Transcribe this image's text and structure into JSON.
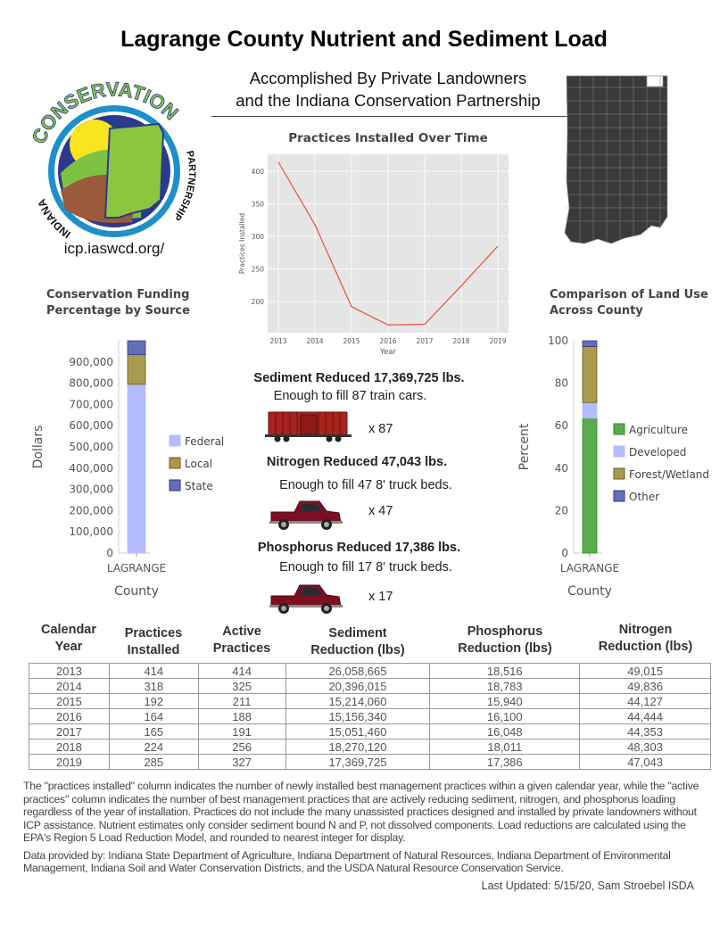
{
  "title": "Lagrange County Nutrient and Sediment Load",
  "subtitle": [
    "Accomplished By Private Landowners",
    "and the Indiana Conservation Partnership"
  ],
  "logo": {
    "text_top": "CONSERVATION",
    "text_left": "INDIANA",
    "text_right": "PARTNERSHIP",
    "url": "icp.iaswcd.org/"
  },
  "colors": {
    "line": "#e8533a",
    "federal": "#b3bcff",
    "local": "#a89a50",
    "state": "#6470b4",
    "agriculture": "#5aac4e",
    "developed": "#b3bcff",
    "forest": "#a89a50",
    "other": "#6470b4",
    "map": "#3a3a3a"
  },
  "chart_data": [
    {
      "type": "line",
      "title": "Practices Installed Over Time",
      "xlabel": "Year",
      "ylabel": "Practices Installed",
      "x": [
        2013,
        2014,
        2015,
        2016,
        2017,
        2018,
        2019
      ],
      "values": [
        414,
        318,
        192,
        164,
        165,
        224,
        285
      ],
      "yticks": [
        200,
        250,
        300,
        350,
        400
      ],
      "ylim": [
        152,
        426
      ],
      "grid": true
    },
    {
      "type": "bar",
      "stacked": true,
      "title": "Conservation Funding Percentage by Source",
      "xlabel": "County",
      "ylabel": "Dollars",
      "categories": [
        "LAGRANGE"
      ],
      "series": [
        {
          "name": "Federal",
          "values": [
            795000
          ]
        },
        {
          "name": "Local",
          "values": [
            140000
          ]
        },
        {
          "name": "State",
          "values": [
            65000
          ]
        }
      ],
      "yticks": [
        "0",
        "100,000",
        "200,000",
        "300,000",
        "400,000",
        "500,000",
        "600,000",
        "700,000",
        "800,000",
        "900,000"
      ],
      "ylim": [
        0,
        1000000
      ],
      "legend": "right"
    },
    {
      "type": "bar",
      "stacked": true,
      "title": "Comparison of Land Use Across County",
      "xlabel": "County",
      "ylabel": "Percent",
      "categories": [
        "LAGRANGE"
      ],
      "series": [
        {
          "name": "Agriculture",
          "values": [
            63.6
          ]
        },
        {
          "name": "Developed",
          "values": [
            7.3
          ]
        },
        {
          "name": "Forest/Wetland",
          "values": [
            26.4
          ]
        },
        {
          "name": "Other",
          "values": [
            2.7
          ]
        }
      ],
      "yticks": [
        "0",
        "20",
        "40",
        "60",
        "80",
        "100"
      ],
      "ylim": [
        0,
        100
      ],
      "legend": "right"
    }
  ],
  "loads": [
    {
      "headline": "Sediment Reduced 17,369,725 lbs.",
      "equiv": "Enough to fill 87 train cars.",
      "count": "x 87",
      "icon": "train-car-icon"
    },
    {
      "headline": "Nitrogen Reduced 47,043  lbs.",
      "equiv": "Enough to fill 47 8' truck beds.",
      "count": "x 47",
      "icon": "pickup-truck-icon"
    },
    {
      "headline": "Phosphorus Reduced 17,386  lbs.",
      "equiv": "Enough to fill 17  8' truck beds.",
      "count": "x 17",
      "icon": "pickup-truck-icon"
    }
  ],
  "table": {
    "headers": [
      [
        "Calendar",
        "Year"
      ],
      [
        "Practices",
        "Installed"
      ],
      [
        "Active",
        "Practices"
      ],
      [
        "Sediment",
        "Reduction (lbs)"
      ],
      [
        "Phosphorus",
        "Reduction (lbs)"
      ],
      [
        "Nitrogen",
        "Reduction (lbs)"
      ]
    ],
    "rows": [
      [
        "2013",
        "414",
        "414",
        "26,058,665",
        "18,516",
        "49,015"
      ],
      [
        "2014",
        "318",
        "325",
        "20,396,015",
        "18,783",
        "49,836"
      ],
      [
        "2015",
        "192",
        "211",
        "15,214,060",
        "15,940",
        "44,127"
      ],
      [
        "2016",
        "164",
        "188",
        "15,156,340",
        "16,100",
        "44,444"
      ],
      [
        "2017",
        "165",
        "191",
        "15,051,460",
        "16,048",
        "44,353"
      ],
      [
        "2018",
        "224",
        "256",
        "18,270,120",
        "18,011",
        "48,303"
      ],
      [
        "2019",
        "285",
        "327",
        "17,369,725",
        "17,386",
        "47,043"
      ]
    ]
  },
  "footnote": "The \"practices installed\" column indicates the number of newly installed best management practices within a given calendar year, while the \"active practices\" column indicates the number of best management practices that are actively reducing sediment, nitrogen, and phosphorus loading regardless of the year of installation.  Practices do not include the many unassisted practices designed and installed by private landowners without ICP assistance. Nutrient estimates only consider sediment bound N and P, not dissolved components. Load reductions are calculated using the EPA's Region 5 Load Reduction Model, and rounded to nearest integer for display.",
  "sources": "Data provided by: Indiana State Department of Agriculture, Indiana Department of Natural Resources, Indiana Department of Environmental Management, Indiana Soil and Water Conservation Districts, and the USDA Natural Resource Conservation Service.",
  "updated": "Last Updated: 5/15/20, Sam Stroebel ISDA"
}
